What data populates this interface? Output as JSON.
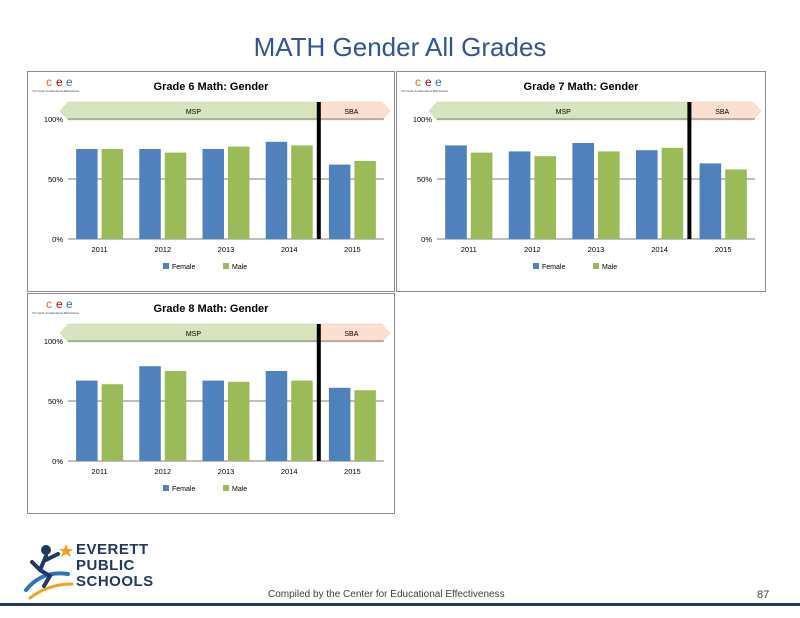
{
  "slide": {
    "title": "MATH Gender All Grades",
    "footer": "Compiled by the Center for Educational Effectiveness",
    "page_number": "87"
  },
  "logo": {
    "line1": "EVERETT",
    "line2": "PUBLIC",
    "line3": "SCHOOLS",
    "colors": {
      "navy": "#1f3864",
      "orange": "#f4a21e",
      "blue": "#2e75b6"
    }
  },
  "cee_logo": {
    "letters": [
      "c",
      "e",
      "e"
    ],
    "letter_colors": [
      "#e46c0a",
      "#c00000",
      "#2e75b6"
    ],
    "tagline": "The Center for Educational Effectiveness"
  },
  "colors": {
    "female": "#4f81bd",
    "male": "#9bbb59",
    "msp_band": "#d7e4bd",
    "sba_band": "#fbe0d1",
    "axis": "#7f7f7f"
  },
  "chart_data": [
    {
      "type": "bar",
      "title": "Grade 6 Math: Gender",
      "categories": [
        "2011",
        "2012",
        "2013",
        "2014",
        "2015"
      ],
      "series": [
        {
          "name": "Female",
          "values": [
            75,
            75,
            75,
            81,
            62
          ]
        },
        {
          "name": "Male",
          "values": [
            75,
            72,
            77,
            78,
            65
          ]
        }
      ],
      "ylim": [
        0,
        100
      ],
      "yticks": [
        "0%",
        "50%",
        "100%"
      ],
      "bands": [
        "MSP",
        "SBA"
      ],
      "divider_after_index": 3,
      "grid": true,
      "legend_placement": "bottom"
    },
    {
      "type": "bar",
      "title": "Grade 7 Math: Gender",
      "categories": [
        "2011",
        "2012",
        "2013",
        "2014",
        "2015"
      ],
      "series": [
        {
          "name": "Female",
          "values": [
            78,
            73,
            80,
            74,
            63
          ]
        },
        {
          "name": "Male",
          "values": [
            72,
            69,
            73,
            76,
            58
          ]
        }
      ],
      "ylim": [
        0,
        100
      ],
      "yticks": [
        "0%",
        "50%",
        "100%"
      ],
      "bands": [
        "MSP",
        "SBA"
      ],
      "divider_after_index": 3,
      "grid": true,
      "legend_placement": "bottom"
    },
    {
      "type": "bar",
      "title": "Grade 8 Math: Gender",
      "categories": [
        "2011",
        "2012",
        "2013",
        "2014",
        "2015"
      ],
      "series": [
        {
          "name": "Female",
          "values": [
            67,
            79,
            67,
            75,
            61
          ]
        },
        {
          "name": "Male",
          "values": [
            64,
            75,
            66,
            67,
            59
          ]
        }
      ],
      "ylim": [
        0,
        100
      ],
      "yticks": [
        "0%",
        "50%",
        "100%"
      ],
      "bands": [
        "MSP",
        "SBA"
      ],
      "divider_after_index": 3,
      "grid": true,
      "legend_placement": "bottom"
    }
  ]
}
